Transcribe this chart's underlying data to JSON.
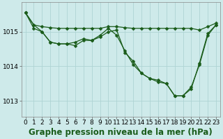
{
  "background_color": "#ceeaea",
  "grid_color": "#aed4d4",
  "line_color": "#1a5c1a",
  "xlabel": "Graphe pression niveau de la mer (hPa)",
  "xlabel_fontsize": 8.5,
  "tick_fontsize": 6.5,
  "xlim": [
    -0.5,
    23.5
  ],
  "ylim": [
    1012.55,
    1015.85
  ],
  "yticks": [
    1013,
    1014,
    1015
  ],
  "xticks": [
    0,
    1,
    2,
    3,
    4,
    5,
    6,
    7,
    8,
    9,
    10,
    11,
    12,
    13,
    14,
    15,
    16,
    17,
    18,
    19,
    20,
    21,
    22,
    23
  ],
  "series1": [
    1015.55,
    1015.2,
    1015.15,
    1015.12,
    1015.1,
    1015.1,
    1015.1,
    1015.1,
    1015.1,
    1015.1,
    1015.15,
    1015.15,
    1015.12,
    1015.1,
    1015.1,
    1015.1,
    1015.1,
    1015.1,
    1015.1,
    1015.1,
    1015.1,
    1015.05,
    1015.15,
    1015.25
  ],
  "series2": [
    1015.55,
    1015.2,
    1015.0,
    1014.7,
    1014.65,
    1014.65,
    1014.7,
    1014.8,
    1014.75,
    1014.9,
    1015.1,
    1014.9,
    1014.45,
    1014.05,
    1013.8,
    1013.65,
    1013.6,
    1013.5,
    1013.15,
    1013.15,
    1013.4,
    1014.05,
    1014.9,
    1015.2
  ],
  "series3": [
    1015.55,
    1015.1,
    1015.0,
    1014.7,
    1014.65,
    1014.65,
    1014.6,
    1014.75,
    1014.75,
    1014.85,
    1015.0,
    1015.05,
    1014.4,
    1014.15,
    1013.8,
    1013.65,
    1013.55,
    1013.5,
    1013.15,
    1013.15,
    1013.35,
    1014.1,
    1014.95,
    1015.2
  ]
}
